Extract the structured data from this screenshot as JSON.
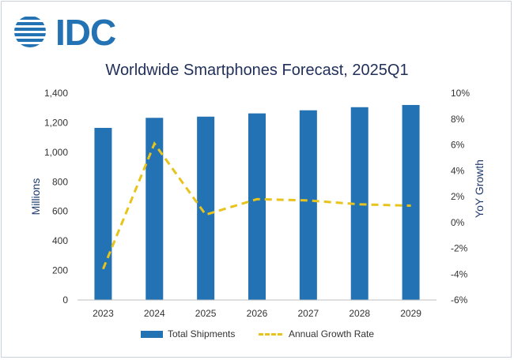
{
  "logo": {
    "text": "IDC",
    "icon": "idc-globe-icon"
  },
  "colors": {
    "bar": "#2272b4",
    "line": "#e8c31c",
    "title": "#1f2f5a",
    "logo": "#2272b4"
  },
  "chart_data": {
    "type": "bar",
    "title": "Worldwide Smartphones Forecast, 2025Q1",
    "categories": [
      "2023",
      "2024",
      "2025",
      "2026",
      "2027",
      "2028",
      "2029"
    ],
    "ylabel": "Millions",
    "y2label": "YoY Growth",
    "ylim": [
      0,
      1400
    ],
    "y2lim": [
      -6,
      10
    ],
    "y_ticks": [
      "0",
      "200",
      "400",
      "600",
      "800",
      "1,000",
      "1,200",
      "1,400"
    ],
    "y2_ticks": [
      "-6%",
      "-4%",
      "-2%",
      "0%",
      "2%",
      "4%",
      "6%",
      "8%",
      "10%"
    ],
    "series": [
      {
        "name": "Total Shipments",
        "type": "bar",
        "axis": "left",
        "values": [
          1165,
          1233,
          1241,
          1263,
          1284,
          1305,
          1320
        ]
      },
      {
        "name": "Annual Growth Rate",
        "type": "line",
        "style": "dashed",
        "axis": "right",
        "values": [
          -3.6,
          6.1,
          0.6,
          1.8,
          1.7,
          1.4,
          1.3
        ]
      }
    ],
    "legend": [
      "Total Shipments",
      "Annual Growth Rate"
    ],
    "legend_position": "bottom",
    "grid": false
  }
}
